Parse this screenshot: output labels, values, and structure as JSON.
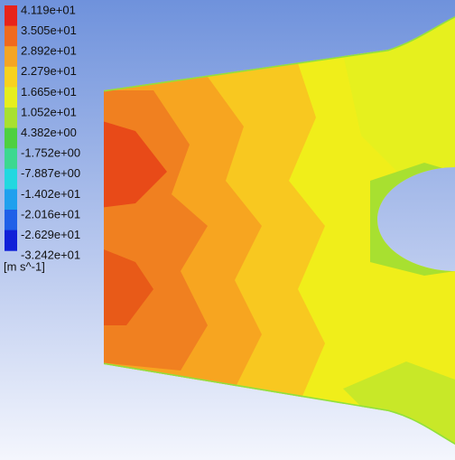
{
  "legend": {
    "labels": [
      "4.119e+01",
      "3.505e+01",
      "2.892e+01",
      "2.279e+01",
      "1.665e+01",
      "1.052e+01",
      "4.382e+00",
      "-1.752e+00",
      "-7.887e+00",
      "-1.402e+01",
      "-2.016e+01",
      "-2.629e+01",
      "-3.242e+01"
    ],
    "unit": "[m s^-1]"
  }
}
